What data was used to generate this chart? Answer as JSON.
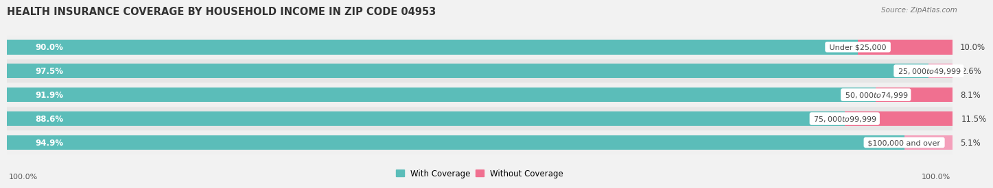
{
  "title": "HEALTH INSURANCE COVERAGE BY HOUSEHOLD INCOME IN ZIP CODE 04953",
  "source": "Source: ZipAtlas.com",
  "categories": [
    "Under $25,000",
    "$25,000 to $49,999",
    "$50,000 to $74,999",
    "$75,000 to $99,999",
    "$100,000 and over"
  ],
  "with_coverage": [
    90.0,
    97.5,
    91.9,
    88.6,
    94.9
  ],
  "without_coverage": [
    10.0,
    2.6,
    8.1,
    11.5,
    5.1
  ],
  "total_label": "100.0%",
  "color_with": "#5BBDB9",
  "color_without": "#F07090",
  "color_without_light": "#F4A0BB",
  "legend_with": "With Coverage",
  "legend_without": "Without Coverage",
  "title_fontsize": 10.5,
  "bar_height": 0.62,
  "row_colors": [
    "#f0f0f0",
    "#e6e6e6"
  ],
  "figsize": [
    14.06,
    2.7
  ],
  "bg_color": "#f2f2f2"
}
